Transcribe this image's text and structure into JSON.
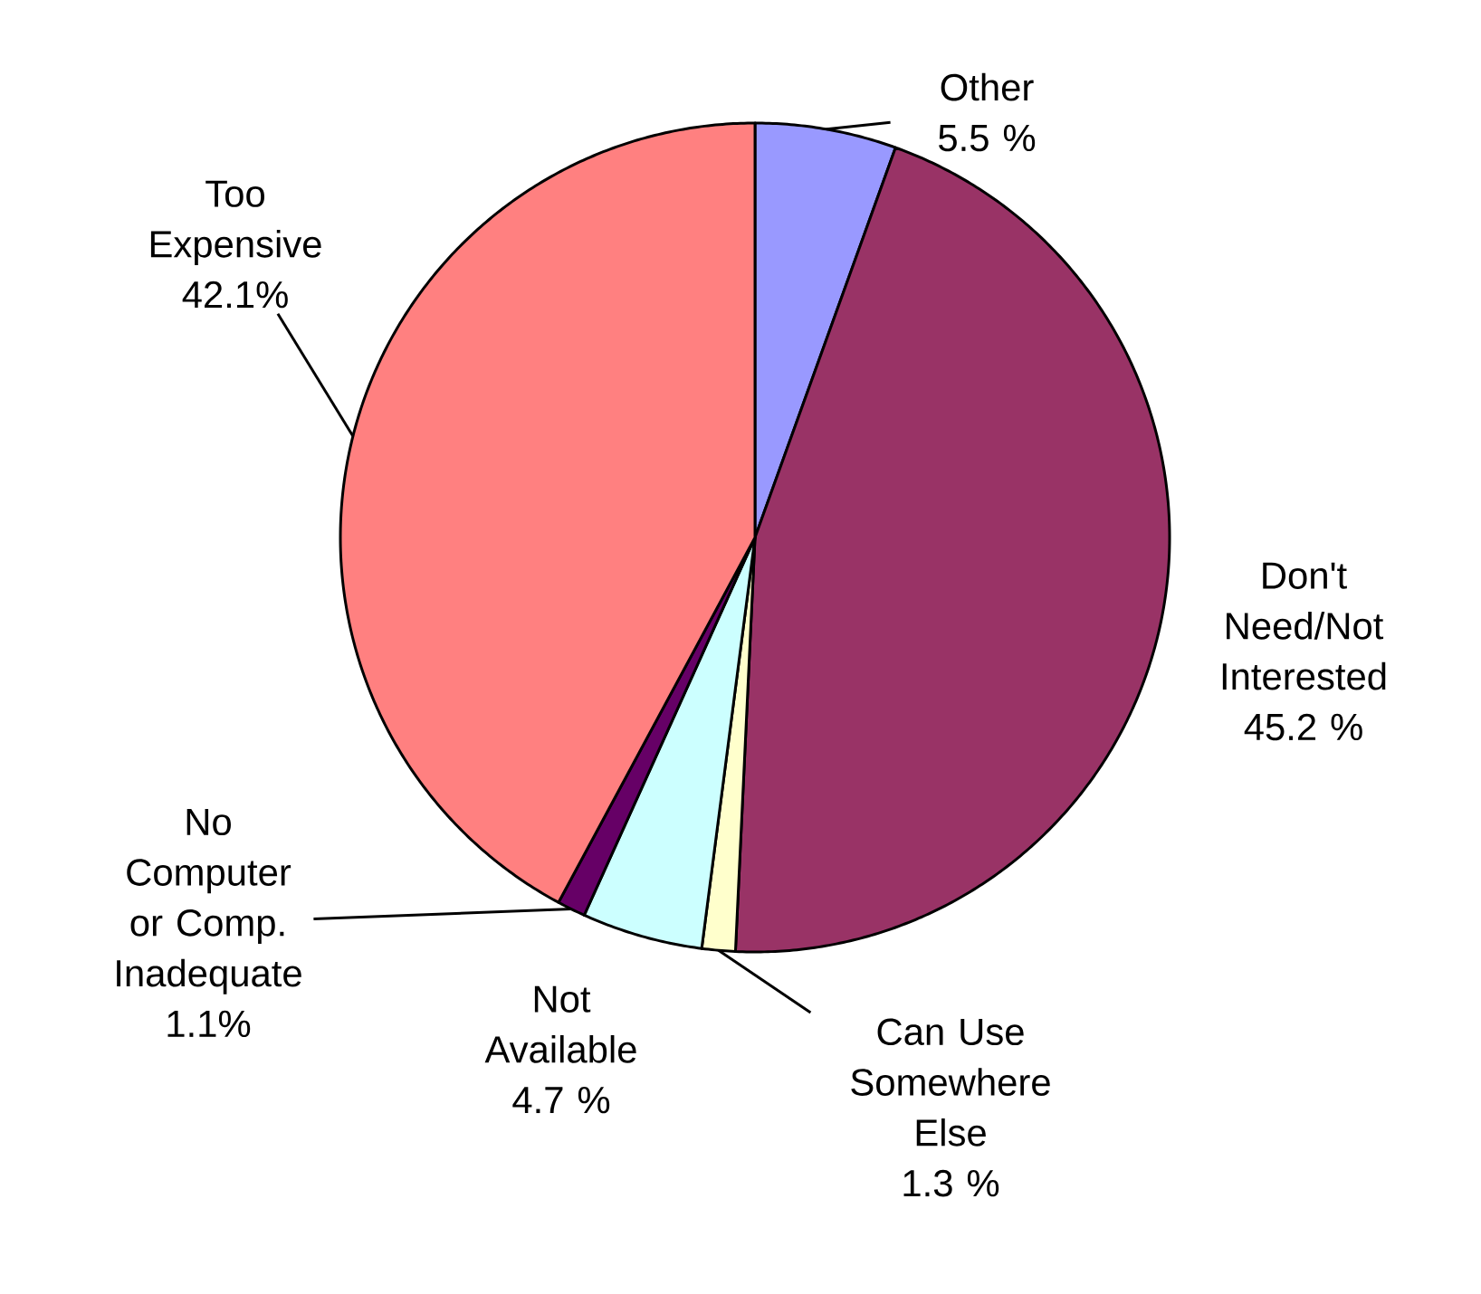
{
  "chart_data": {
    "type": "pie",
    "categories": [
      "Other",
      "Don't Need/Not Interested",
      "Can Use Somewhere Else",
      "Not Available",
      "No Computer or Comp. Inadequate",
      "Too Expensive"
    ],
    "values": [
      5.5,
      45.2,
      1.3,
      4.7,
      1.1,
      42.1
    ],
    "colors": [
      "#9999ff",
      "#993366",
      "#ffffcc",
      "#ccffff",
      "#660066",
      "#ff8080"
    ],
    "value_labels": [
      "5.5 %",
      "45.2 %",
      "1.3 %",
      "4.7 %",
      "1.1%",
      "42.1%"
    ]
  }
}
